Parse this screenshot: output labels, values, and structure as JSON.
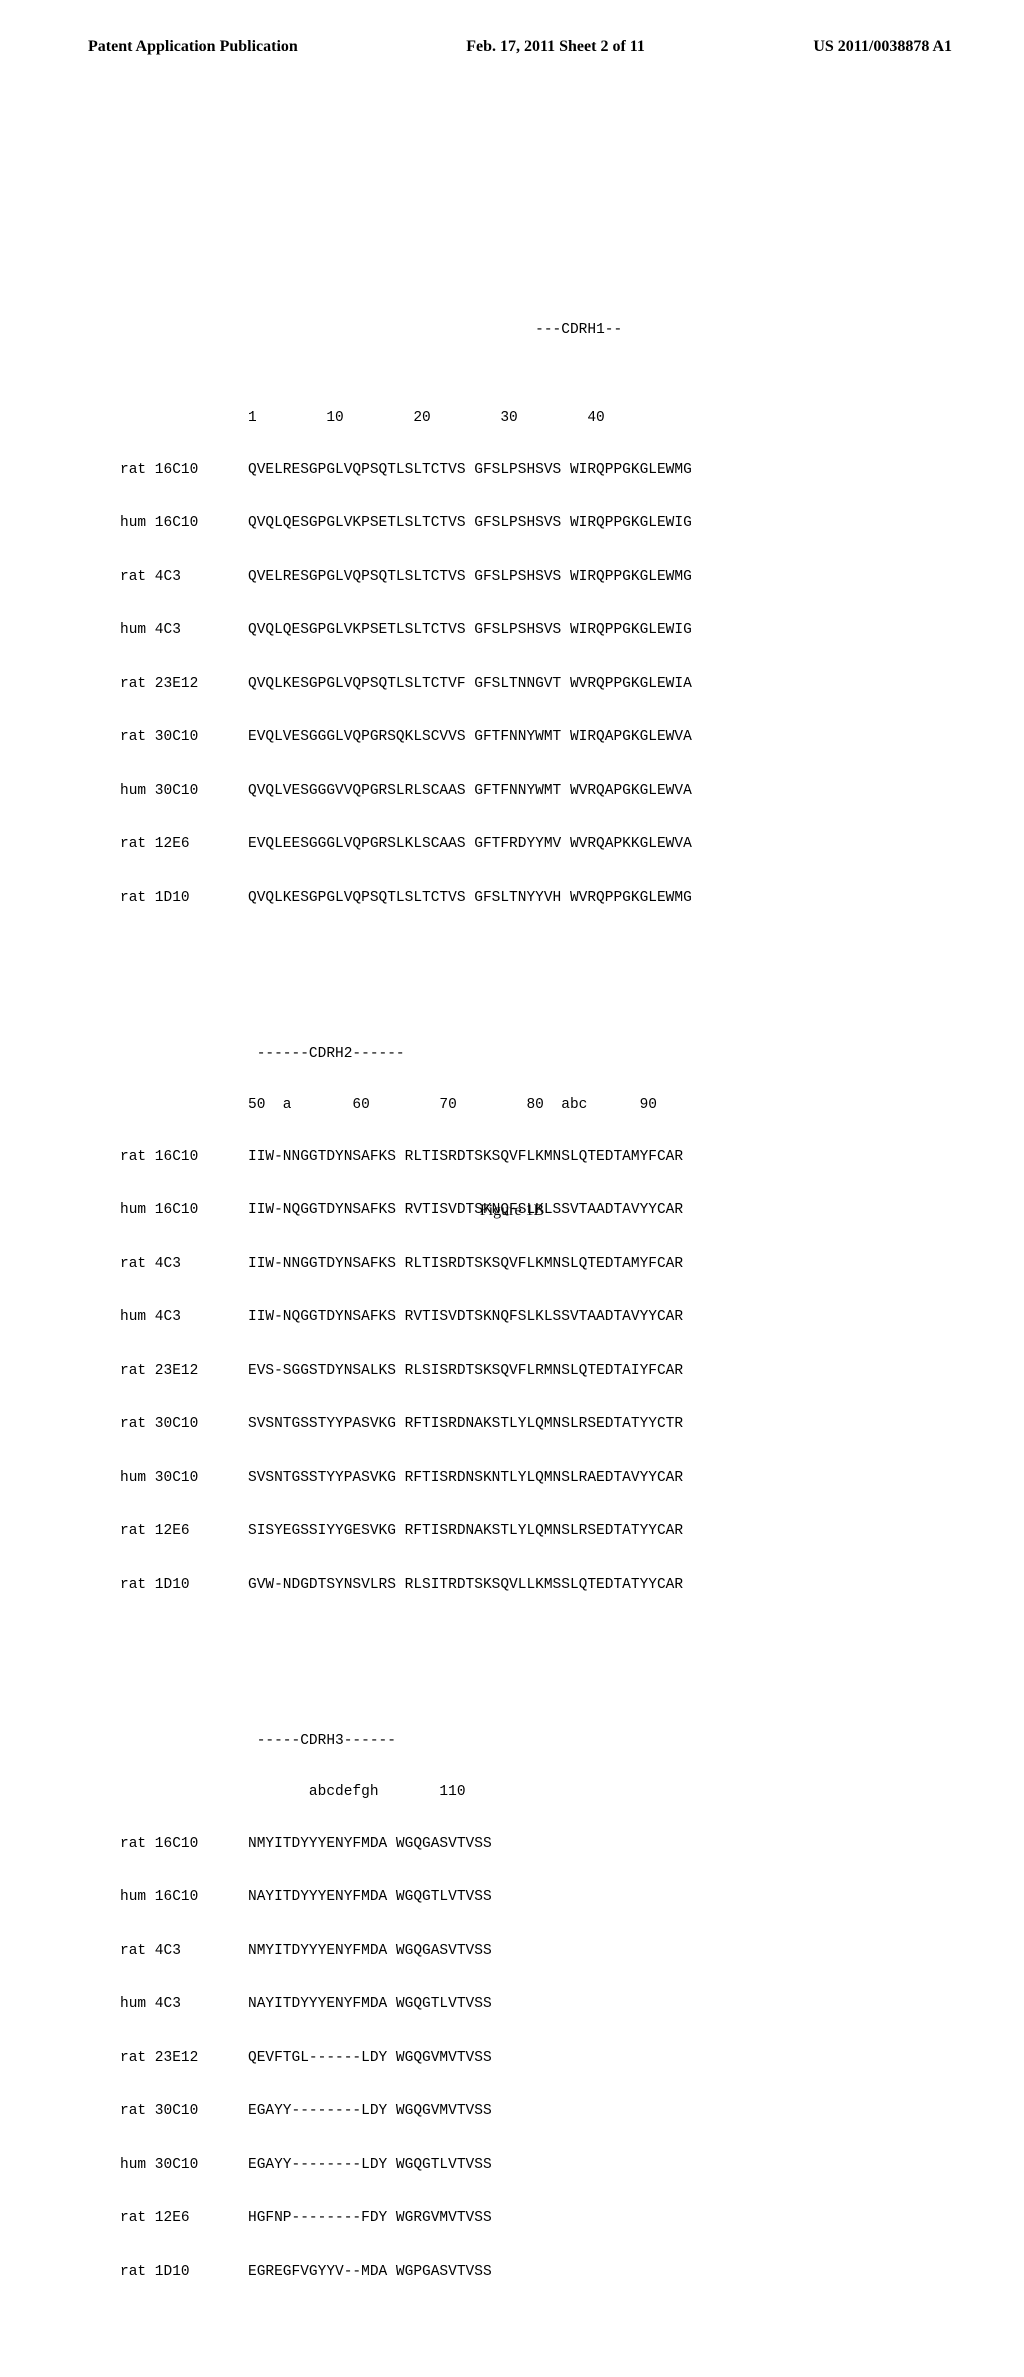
{
  "header": {
    "left": "Patent Application Publication",
    "center": "Feb. 17, 2011  Sheet 2 of 11",
    "right": "US 2011/0038878 A1"
  },
  "block1": {
    "region_label": "---CDRH1--",
    "ruler": "1        10        20        30        40",
    "rows": [
      {
        "label": "rat 16C10",
        "seq": "QVELRESGPGLVQPSQTLSLTCTVS GFSLPSHSVS WIRQPPGKGLEWMG"
      },
      {
        "label": "hum 16C10",
        "seq": "QVQLQESGPGLVKPSETLSLTCTVS GFSLPSHSVS WIRQPPGKGLEWIG"
      },
      {
        "label": "rat 4C3",
        "seq": "QVELRESGPGLVQPSQTLSLTCTVS GFSLPSHSVS WIRQPPGKGLEWMG"
      },
      {
        "label": "hum 4C3",
        "seq": "QVQLQESGPGLVKPSETLSLTCTVS GFSLPSHSVS WIRQPPGKGLEWIG"
      },
      {
        "label": "rat 23E12",
        "seq": "QVQLKESGPGLVQPSQTLSLTCTVF GFSLTNNGVT WVRQPPGKGLEWIA"
      },
      {
        "label": "rat 30C10",
        "seq": "EVQLVESGGGLVQPGRSQKLSCVVS GFTFNNYWMT WIRQAPGKGLEWVA"
      },
      {
        "label": "hum 30C10",
        "seq": "QVQLVESGGGVVQPGRSLRLSCAAS GFTFNNYWMT WVRQAPGKGLEWVA"
      },
      {
        "label": "rat 12E6",
        "seq": "EVQLEESGGGLVQPGRSLKLSCAAS GFTFRDYYMV WVRQAPKKGLEWVA"
      },
      {
        "label": "rat 1D10",
        "seq": "QVQLKESGPGLVQPSQTLSLTCTVS GFSLTNYYVH WVRQPPGKGLEWMG"
      }
    ]
  },
  "block2": {
    "region_label": "------CDRH2------",
    "ruler": "50  a       60        70        80  abc      90",
    "rows": [
      {
        "label": "rat 16C10",
        "seq": "IIW-NNGGTDYNSAFKS RLTISRDTSKSQVFLKMNSLQTEDTAMYFCAR"
      },
      {
        "label": "hum 16C10",
        "seq": "IIW-NQGGTDYNSAFKS RVTISVDTSKNQFSLKLSSVTAADTAVYYCAR"
      },
      {
        "label": "rat 4C3",
        "seq": "IIW-NNGGTDYNSAFKS RLTISRDTSKSQVFLKMNSLQTEDTAMYFCAR"
      },
      {
        "label": "hum 4C3",
        "seq": "IIW-NQGGTDYNSAFKS RVTISVDTSKNQFSLKLSSVTAADTAVYYCAR"
      },
      {
        "label": "rat 23E12",
        "seq": "EVS-SGGSTDYNSALKS RLSISRDTSKSQVFLRMNSLQTEDTAIYFCAR"
      },
      {
        "label": "rat 30C10",
        "seq": "SVSNTGSSTYYPASVKG RFTISRDNAKSTLYLQMNSLRSEDTATYYCTR"
      },
      {
        "label": "hum 30C10",
        "seq": "SVSNTGSSTYYPASVKG RFTISRDNSKNTLYLQMNSLRAEDTAVYYCAR"
      },
      {
        "label": "rat 12E6",
        "seq": "SISYEGSSIYYGESVKG RFTISRDNAKSTLYLQMNSLRSEDTATYYCAR"
      },
      {
        "label": "rat 1D10",
        "seq": "GVW-NDGDTSYNSVLRS RLSITRDTSKSQVLLKMSSLQTEDTATYYCAR"
      }
    ]
  },
  "block3": {
    "region_label": "-----CDRH3------",
    "ruler": "       abcdefgh       110",
    "rows": [
      {
        "label": "rat 16C10",
        "seq": "NMYITDYYYENYFMDA WGQGASVTVSS"
      },
      {
        "label": "hum 16C10",
        "seq": "NAYITDYYYENYFMDA WGQGTLVTVSS"
      },
      {
        "label": "rat 4C3",
        "seq": "NMYITDYYYENYFMDA WGQGASVTVSS"
      },
      {
        "label": "hum 4C3",
        "seq": "NAYITDYYYENYFMDA WGQGTLVTVSS"
      },
      {
        "label": "rat 23E12",
        "seq": "QEVFTGL------LDY WGQGVMVTVSS"
      },
      {
        "label": "rat 30C10",
        "seq": "EGAYY--------LDY WGQGVMVTVSS"
      },
      {
        "label": "hum 30C10",
        "seq": "EGAYY--------LDY WGQGTLVTVSS"
      },
      {
        "label": "rat 12E6",
        "seq": "HGFNP--------FDY WGRGVMVTVSS"
      },
      {
        "label": "rat 1D10",
        "seq": "EGREGFVGYYV--MDA WGPGASVTVSS"
      }
    ]
  },
  "figure_label": "Figure 1B"
}
